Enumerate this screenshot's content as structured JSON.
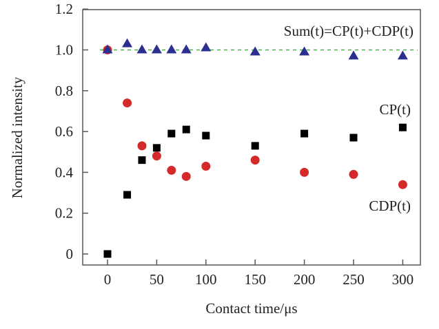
{
  "chart_data": {
    "type": "scatter",
    "xlabel": "Contact time/μs",
    "ylabel": "Normalized intensity",
    "xlim": [
      -25,
      320
    ],
    "ylim": [
      -0.05,
      1.2
    ],
    "xticks": [
      0,
      50,
      100,
      150,
      200,
      250,
      300
    ],
    "xtick_labels": [
      "0",
      "50",
      "100",
      "150",
      "200",
      "250",
      "300"
    ],
    "yticks": [
      0,
      0.2,
      0.4,
      0.6,
      0.8,
      1.0,
      1.2
    ],
    "ytick_labels": [
      "0",
      "0.2",
      "0.4",
      "0.6",
      "0.8",
      "1.0",
      "1.2"
    ],
    "grid": false,
    "x": [
      0,
      20,
      35,
      50,
      65,
      80,
      100,
      150,
      200,
      250,
      300
    ],
    "series": [
      {
        "name": "Sum(t)=CP(t)+CDP(t)",
        "marker": "triangle",
        "color": "#2b2f8f",
        "values": [
          1.0,
          1.03,
          1.0,
          1.0,
          1.0,
          1.0,
          1.01,
          0.99,
          0.99,
          0.97,
          0.97
        ]
      },
      {
        "name": "CP(t)",
        "marker": "square",
        "color": "#000000",
        "values": [
          0.0,
          0.29,
          0.46,
          0.52,
          0.59,
          0.61,
          0.58,
          0.53,
          0.59,
          0.57,
          0.62
        ]
      },
      {
        "name": "CDP(t)",
        "marker": "circle",
        "color": "#d42a2a",
        "values": [
          1.0,
          0.74,
          0.53,
          0.48,
          0.41,
          0.38,
          0.43,
          0.46,
          0.4,
          0.39,
          0.34
        ]
      }
    ],
    "reference_line": {
      "y": 1.0,
      "style": "dashed",
      "color": "#3dbb3d"
    }
  }
}
